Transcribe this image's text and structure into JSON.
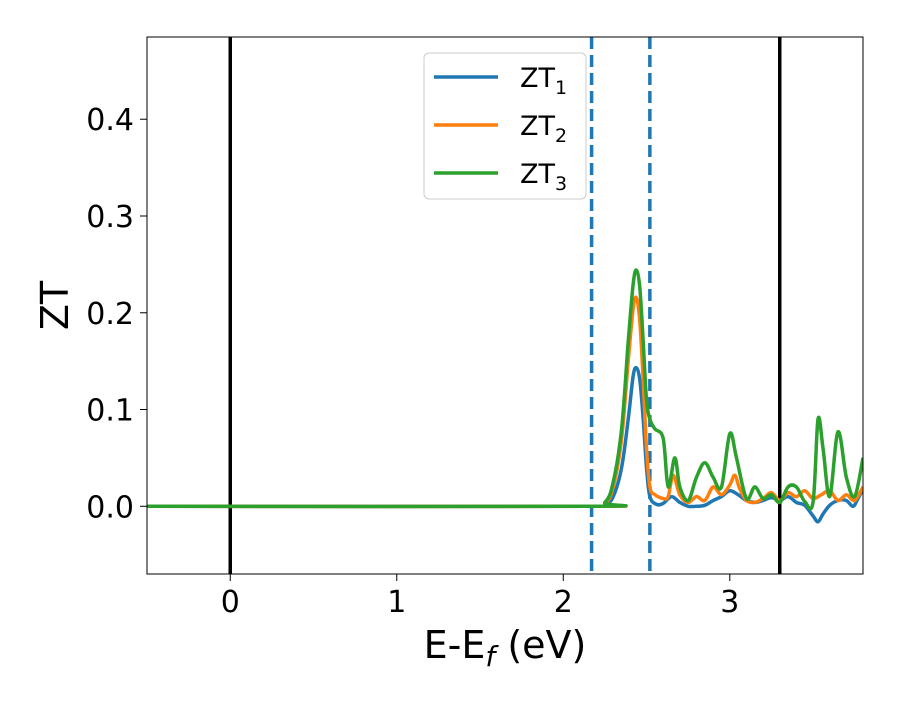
{
  "chart_data": {
    "type": "line",
    "xlabel": {
      "main": "E-E",
      "sub": "f",
      "unit": " (eV)"
    },
    "ylabel": "ZT",
    "xlim": [
      -0.5,
      3.8
    ],
    "ylim": [
      -0.07,
      0.485
    ],
    "xticks": [
      {
        "value": 0,
        "label": "0"
      },
      {
        "value": 1,
        "label": "1"
      },
      {
        "value": 2,
        "label": "2"
      },
      {
        "value": 3,
        "label": "3"
      }
    ],
    "yticks": [
      {
        "value": 0.0,
        "label": "0.0"
      },
      {
        "value": 0.1,
        "label": "0.1"
      },
      {
        "value": 0.2,
        "label": "0.2"
      },
      {
        "value": 0.3,
        "label": "0.3"
      },
      {
        "value": 0.4,
        "label": "0.4"
      }
    ],
    "grid": false,
    "legend_position": "top-center",
    "vlines": [
      {
        "x": 0.0,
        "style": "solid",
        "color": "#000000"
      },
      {
        "x": 3.3,
        "style": "solid",
        "color": "#000000"
      },
      {
        "x": 2.17,
        "style": "dashed",
        "color": "#1f77b4"
      },
      {
        "x": 2.52,
        "style": "dashed",
        "color": "#1f77b4"
      }
    ],
    "series": [
      {
        "name": "ZT",
        "sub": "1",
        "color": "#1f77b4",
        "points": [
          [
            -0.5,
            0
          ],
          [
            2.15,
            0
          ],
          [
            2.25,
            0.002
          ],
          [
            2.3,
            0.01
          ],
          [
            2.35,
            0.04
          ],
          [
            2.39,
            0.09
          ],
          [
            2.42,
            0.135
          ],
          [
            2.44,
            0.143
          ],
          [
            2.46,
            0.13
          ],
          [
            2.48,
            0.09
          ],
          [
            2.5,
            0.04
          ],
          [
            2.52,
            0.01
          ],
          [
            2.56,
            0.002
          ],
          [
            2.6,
            0.003
          ],
          [
            2.65,
            0.01
          ],
          [
            2.7,
            0.004
          ],
          [
            2.75,
            0.0
          ],
          [
            2.8,
            0.0
          ],
          [
            2.85,
            0.001
          ],
          [
            2.9,
            0.006
          ],
          [
            2.95,
            0.01
          ],
          [
            3.0,
            0.016
          ],
          [
            3.05,
            0.012
          ],
          [
            3.1,
            0.006
          ],
          [
            3.15,
            0.004
          ],
          [
            3.2,
            0.006
          ],
          [
            3.25,
            0.009
          ],
          [
            3.3,
            0.006
          ],
          [
            3.35,
            0.01
          ],
          [
            3.4,
            0.004
          ],
          [
            3.45,
            0.001
          ],
          [
            3.5,
            -0.01
          ],
          [
            3.53,
            -0.016
          ],
          [
            3.56,
            -0.008
          ],
          [
            3.6,
            0.001
          ],
          [
            3.65,
            0.006
          ],
          [
            3.7,
            0.006
          ],
          [
            3.74,
            0.0
          ],
          [
            3.77,
            0.008
          ],
          [
            3.8,
            0.018
          ]
        ]
      },
      {
        "name": "ZT",
        "sub": "2",
        "color": "#ff7f0e",
        "points": [
          [
            -0.5,
            0
          ],
          [
            2.15,
            0
          ],
          [
            2.25,
            0.003
          ],
          [
            2.3,
            0.02
          ],
          [
            2.35,
            0.07
          ],
          [
            2.39,
            0.15
          ],
          [
            2.42,
            0.205
          ],
          [
            2.44,
            0.215
          ],
          [
            2.46,
            0.19
          ],
          [
            2.48,
            0.13
          ],
          [
            2.5,
            0.06
          ],
          [
            2.52,
            0.02
          ],
          [
            2.55,
            0.012
          ],
          [
            2.6,
            0.008
          ],
          [
            2.63,
            0.01
          ],
          [
            2.66,
            0.032
          ],
          [
            2.7,
            0.012
          ],
          [
            2.75,
            0.004
          ],
          [
            2.8,
            0.01
          ],
          [
            2.85,
            0.006
          ],
          [
            2.9,
            0.02
          ],
          [
            2.95,
            0.012
          ],
          [
            3.0,
            0.022
          ],
          [
            3.03,
            0.032
          ],
          [
            3.06,
            0.018
          ],
          [
            3.1,
            0.006
          ],
          [
            3.15,
            0.004
          ],
          [
            3.2,
            0.008
          ],
          [
            3.25,
            0.014
          ],
          [
            3.3,
            0.006
          ],
          [
            3.35,
            0.014
          ],
          [
            3.4,
            0.01
          ],
          [
            3.45,
            0.016
          ],
          [
            3.5,
            0.008
          ],
          [
            3.55,
            0.012
          ],
          [
            3.6,
            0.016
          ],
          [
            3.65,
            0.006
          ],
          [
            3.7,
            0.012
          ],
          [
            3.75,
            0.006
          ],
          [
            3.8,
            0.02
          ]
        ]
      },
      {
        "name": "ZT",
        "sub": "3",
        "color": "#2ca02c",
        "points": [
          [
            -0.5,
            0
          ],
          [
            2.15,
            0
          ],
          [
            2.25,
            0.004
          ],
          [
            2.3,
            0.025
          ],
          [
            2.35,
            0.08
          ],
          [
            2.39,
            0.17
          ],
          [
            2.42,
            0.23
          ],
          [
            2.44,
            0.244
          ],
          [
            2.46,
            0.225
          ],
          [
            2.48,
            0.17
          ],
          [
            2.5,
            0.11
          ],
          [
            2.52,
            0.09
          ],
          [
            2.55,
            0.08
          ],
          [
            2.6,
            0.07
          ],
          [
            2.63,
            0.02
          ],
          [
            2.67,
            0.05
          ],
          [
            2.7,
            0.02
          ],
          [
            2.75,
            0.006
          ],
          [
            2.8,
            0.03
          ],
          [
            2.85,
            0.045
          ],
          [
            2.9,
            0.03
          ],
          [
            2.95,
            0.02
          ],
          [
            3.0,
            0.075
          ],
          [
            3.04,
            0.05
          ],
          [
            3.1,
            0.008
          ],
          [
            3.15,
            0.02
          ],
          [
            3.2,
            0.008
          ],
          [
            3.25,
            0.012
          ],
          [
            3.3,
            0.004
          ],
          [
            3.35,
            0.02
          ],
          [
            3.4,
            0.02
          ],
          [
            3.45,
            0.005
          ],
          [
            3.5,
            0.004
          ],
          [
            3.53,
            0.09
          ],
          [
            3.56,
            0.06
          ],
          [
            3.6,
            0.01
          ],
          [
            3.65,
            0.077
          ],
          [
            3.7,
            0.03
          ],
          [
            3.75,
            0.01
          ],
          [
            3.8,
            0.05
          ]
        ]
      }
    ]
  }
}
